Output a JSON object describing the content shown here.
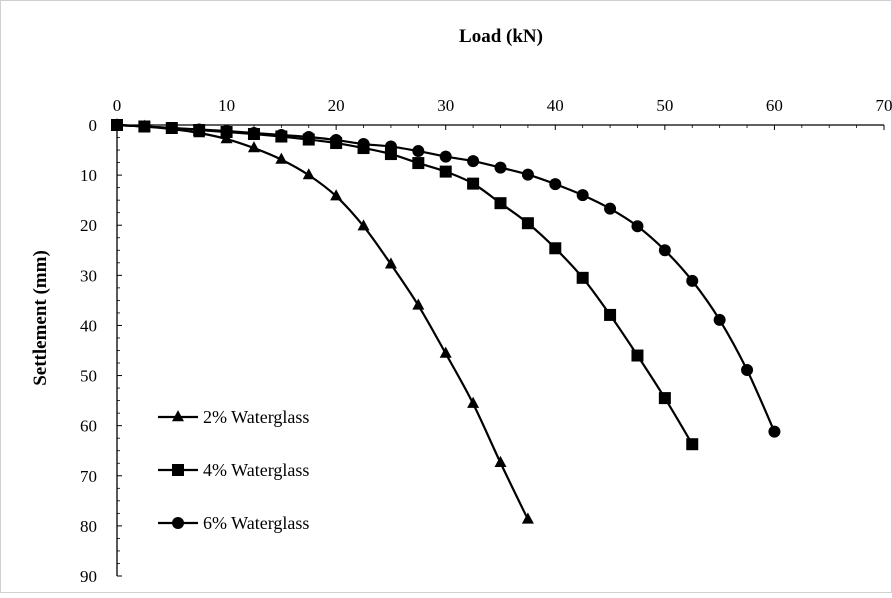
{
  "chart_data": {
    "type": "line",
    "xlabel": "Load (kN)",
    "ylabel": "Settlement (mm)",
    "xlim": [
      0,
      70
    ],
    "ylim": [
      0,
      90
    ],
    "x_ticks": [
      "0",
      "10",
      "20",
      "30",
      "40",
      "50",
      "60",
      "70"
    ],
    "y_ticks": [
      "0",
      "10",
      "20",
      "30",
      "40",
      "50",
      "60",
      "70",
      "80",
      "90"
    ],
    "x_axis_position": "top",
    "y_axis_inverted": true,
    "grid": false,
    "legend_position": "bottom-left",
    "series": [
      {
        "name": "2% Waterglass",
        "marker": "triangle",
        "color": "#000000",
        "x": [
          0,
          2.5,
          5,
          7.5,
          10,
          12.5,
          15,
          17.5,
          20,
          22.5,
          25,
          27.5,
          30,
          32.5,
          35,
          37.5
        ],
        "y": [
          0,
          0.3,
          0.8,
          1.6,
          2.8,
          4.6,
          6.9,
          10.0,
          14.2,
          20.2,
          27.8,
          36.0,
          45.6,
          55.6,
          67.4,
          78.7
        ]
      },
      {
        "name": "4% Waterglass",
        "marker": "square",
        "color": "#000000",
        "x": [
          0,
          2.5,
          5,
          7.5,
          10,
          12.5,
          15,
          17.5,
          20,
          22.5,
          25,
          27.5,
          30,
          32.5,
          35,
          37.5,
          40,
          42.5,
          45,
          47.5,
          50,
          52.5
        ],
        "y": [
          0,
          0.3,
          0.6,
          1.0,
          1.4,
          1.8,
          2.3,
          2.9,
          3.6,
          4.6,
          5.8,
          7.6,
          9.3,
          11.7,
          15.6,
          19.6,
          24.6,
          30.5,
          37.9,
          46.0,
          54.5,
          63.7
        ]
      },
      {
        "name": "6% Waterglass",
        "marker": "circle",
        "color": "#000000",
        "x": [
          0,
          2.5,
          5,
          7.5,
          10,
          12.5,
          15,
          17.5,
          20,
          22.5,
          25,
          27.5,
          30,
          32.5,
          35,
          37.5,
          40,
          42.5,
          45,
          47.5,
          50,
          52.5,
          55,
          57.5,
          60
        ],
        "y": [
          0,
          0.3,
          0.6,
          0.9,
          1.2,
          1.6,
          2.0,
          2.4,
          3.0,
          3.8,
          4.3,
          5.2,
          6.3,
          7.2,
          8.5,
          9.9,
          11.8,
          14.0,
          16.7,
          20.2,
          25.0,
          31.1,
          38.9,
          48.9,
          61.2
        ]
      }
    ]
  }
}
